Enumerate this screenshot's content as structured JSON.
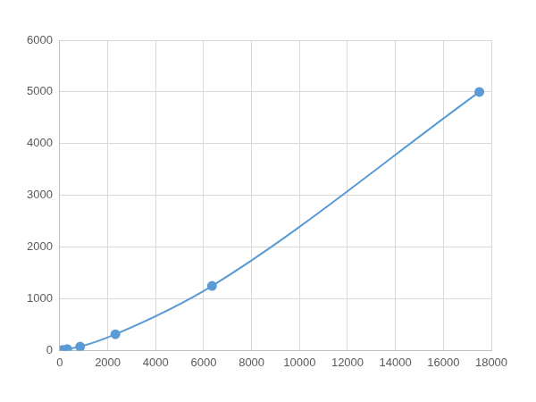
{
  "chart_data": {
    "type": "line",
    "x": [
      115,
      310,
      850,
      2320,
      6350,
      17500
    ],
    "values": [
      10,
      30,
      75,
      315,
      1250,
      5000
    ],
    "color": "#5b9bd5",
    "marker": "circle",
    "line_style": "smooth",
    "xlim": [
      0,
      18000
    ],
    "xticks": [
      0,
      2000,
      4000,
      6000,
      8000,
      10000,
      12000,
      14000,
      16000,
      18000
    ],
    "ylim": [
      0,
      6000
    ],
    "yticks": [
      0,
      1000,
      2000,
      3000,
      4000,
      5000,
      6000
    ],
    "grid": true
  }
}
